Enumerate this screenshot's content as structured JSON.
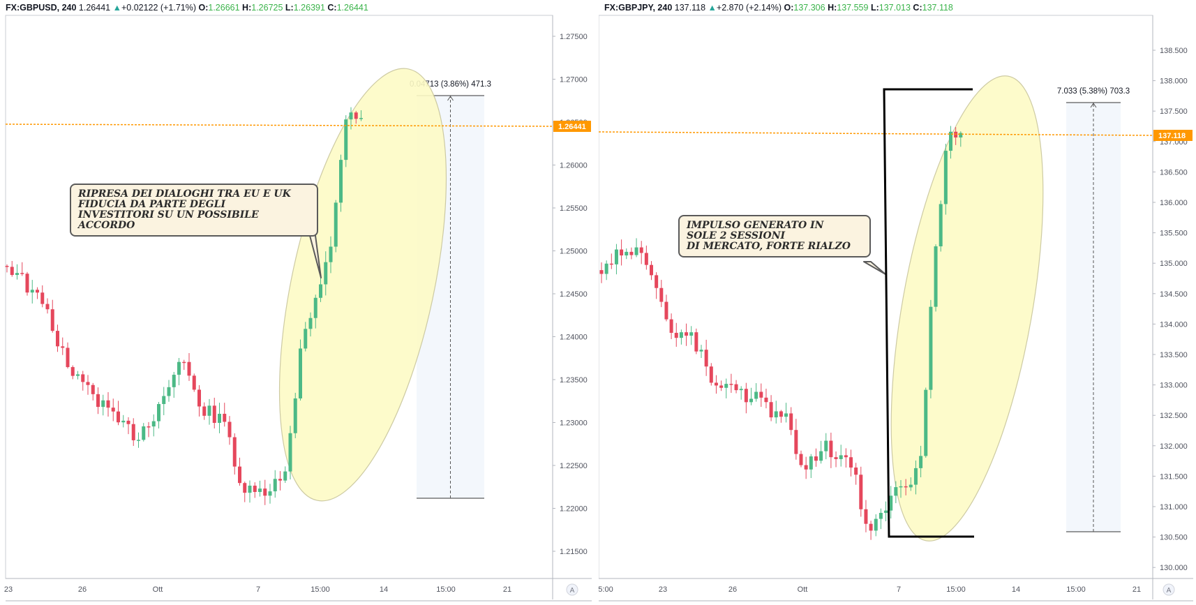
{
  "left_chart": {
    "symbol": "FX:GBPUSD",
    "timeframe": "240",
    "last": "1.26441",
    "change": "+0.02122 (+1.71%)",
    "open": "1.26661",
    "high": "1.26725",
    "low": "1.26391",
    "close": "1.26441",
    "price_labels": [
      "1.27500",
      "1.27000",
      "1.26500",
      "1.26000",
      "1.25500",
      "1.25000",
      "1.24500",
      "1.24000",
      "1.23500",
      "1.23000",
      "1.22500",
      "1.22000",
      "1.21500"
    ],
    "current_price_tag": "1.26441",
    "time_labels": [
      "23",
      "26",
      "Ott",
      "7",
      "15:00",
      "14",
      "15:00",
      "21"
    ],
    "measure": "0.04713 (3.86%) 471.3",
    "callout": "RIPRESA DEI DIALOGHI TRA EU E UK\nFIDUCIA DA PARTE DEGLI\nINVESTITORI SU UN POSSIBILE ACCORDO",
    "auto_scale_button": "A"
  },
  "right_chart": {
    "symbol": "FX:GBPJPY",
    "timeframe": "240",
    "last": "137.118",
    "change": "+2.870 (+2.14%)",
    "open": "137.306",
    "high": "137.559",
    "low": "137.013",
    "close": "137.118",
    "price_labels": [
      "138.500",
      "138.000",
      "137.500",
      "137.000",
      "136.500",
      "136.000",
      "135.500",
      "135.000",
      "134.500",
      "134.000",
      "133.500",
      "133.000",
      "132.500",
      "132.000",
      "131.500",
      "131.000",
      "130.500",
      "130.000"
    ],
    "current_price_tag": "137.118",
    "time_labels": [
      "5:00",
      "23",
      "26",
      "Ott",
      "7",
      "15:00",
      "14",
      "15:00",
      "21"
    ],
    "measure": "7.033 (5.38%) 703.3",
    "callout": "IMPULSO GENERATO IN\nSOLE 2 SESSIONI\nDI MERCATO, FORTE RIALZO",
    "auto_scale_button": "A"
  },
  "colors": {
    "bull": "#4cb986",
    "bear": "#e5475c",
    "price_line": "#ff9800",
    "ellipse_fill": "#fdfbc6",
    "measure_fill": "#eef4fb",
    "callout_bg": "#fbf3e0"
  }
}
